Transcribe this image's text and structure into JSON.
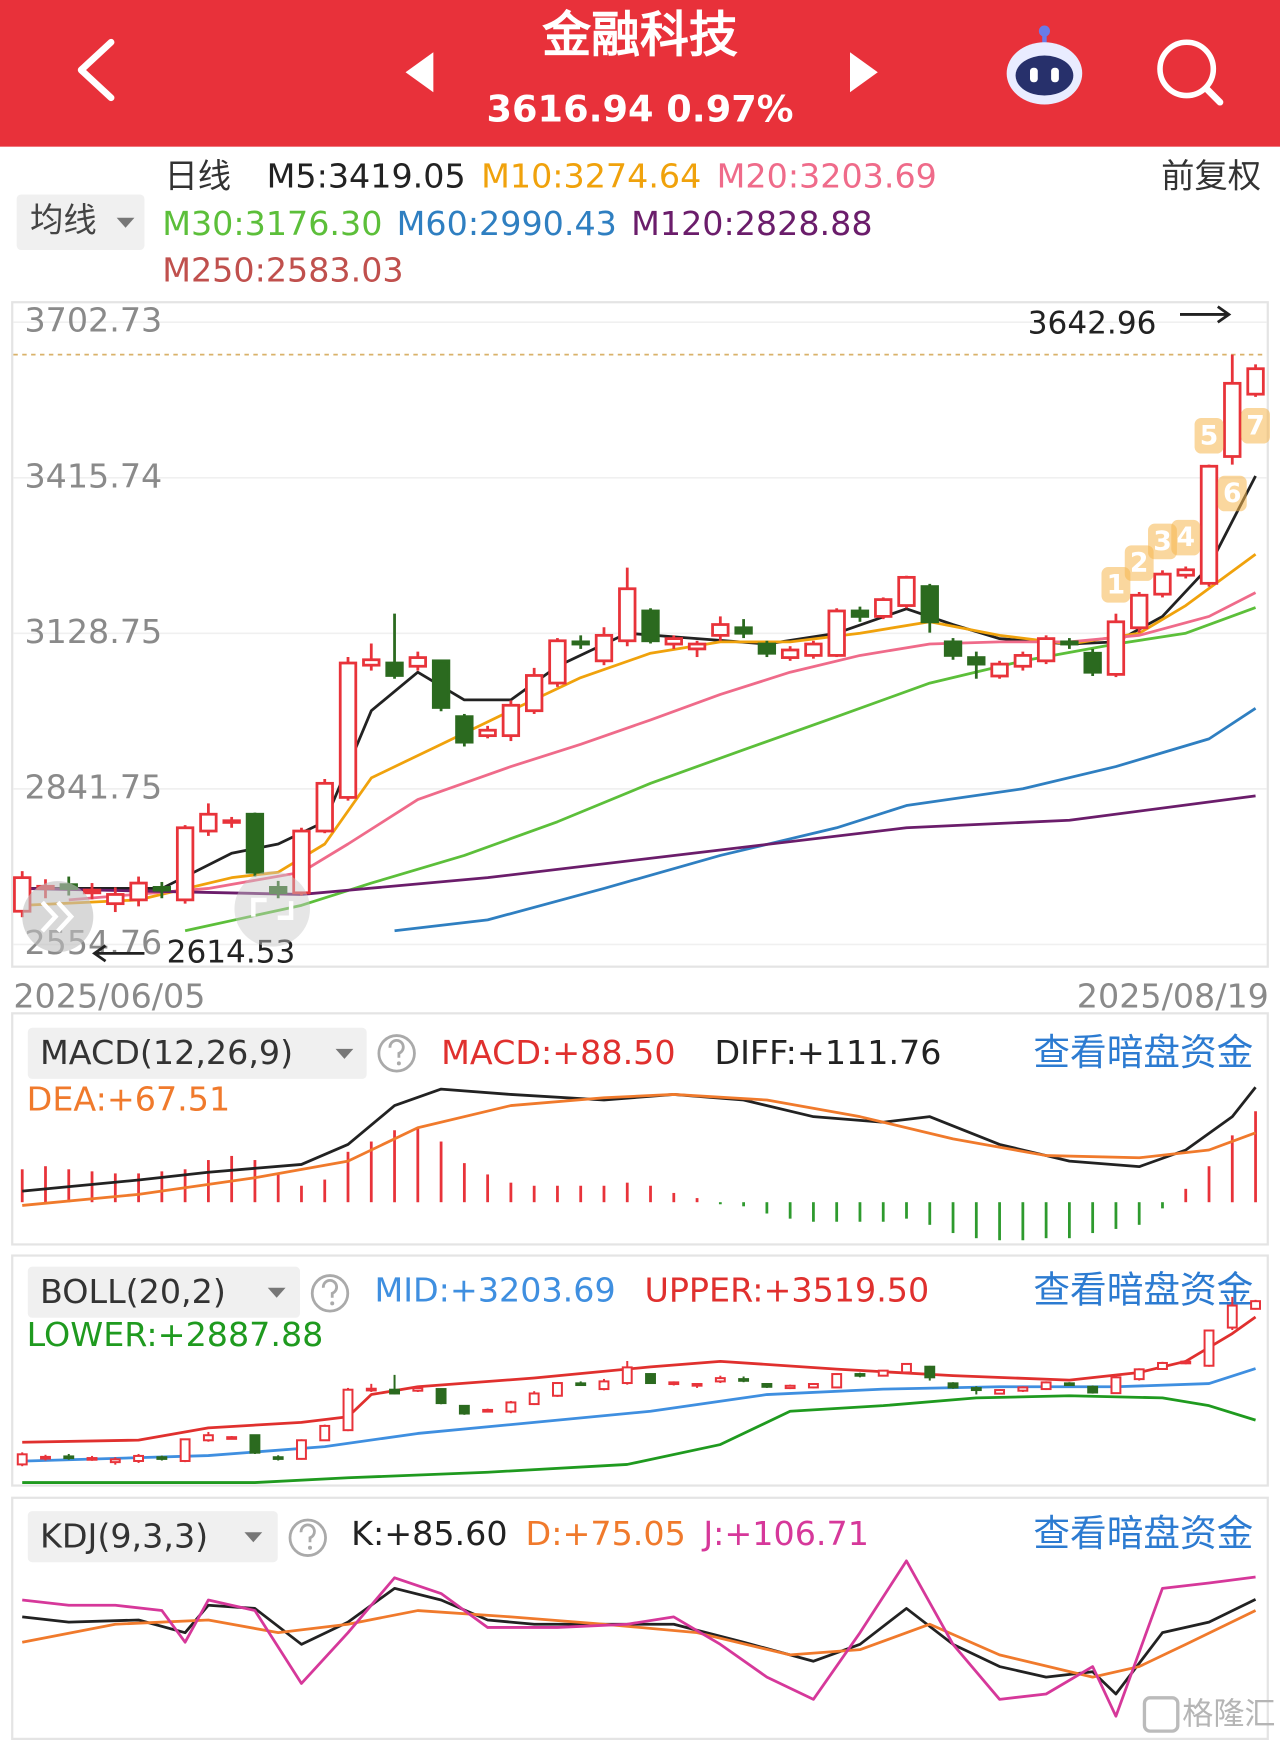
{
  "header": {
    "title": "金融科技",
    "quote": "3616.94 0.97%"
  },
  "watermark": "格隆汇",
  "chart_data": [
    {
      "type": "candlestick",
      "title": "日线",
      "adjust": "前复权",
      "ma_selector": "均线",
      "up_color": "#e8333a",
      "down_color": "#2b6a1f",
      "open": [
        2616,
        2658,
        2665,
        2650,
        2630,
        2637,
        2660,
        2637,
        2764,
        2781,
        2795,
        2660,
        2650,
        2764,
        2826,
        3070,
        3074,
        3068,
        3078,
        2975,
        2940,
        2940,
        2986,
        3037,
        3113,
        3078,
        3115,
        3170,
        3109,
        3100,
        3125,
        3139,
        3109,
        3084,
        3088,
        3088,
        3170,
        3160,
        3180,
        3215,
        3113,
        3084,
        3050,
        3068,
        3078,
        3113,
        3092,
        3053,
        3139,
        3201,
        3236,
        3221,
        3455,
        3570
      ],
      "close": [
        2678,
        2662,
        2658,
        2655,
        2647,
        2668,
        2655,
        2770,
        2795,
        2783,
        2688,
        2650,
        2764,
        2852,
        3074,
        3080,
        3051,
        3084,
        2992,
        2928,
        2950,
        2996,
        3051,
        3115,
        3109,
        3125,
        3211,
        3115,
        3119,
        3109,
        3145,
        3129,
        3092,
        3098,
        3109,
        3170,
        3160,
        3191,
        3232,
        3150,
        3088,
        3072,
        3072,
        3088,
        3119,
        3109,
        3057,
        3150,
        3199,
        3238,
        3246,
        3437,
        3590,
        3616.94
      ],
      "high": [
        2690,
        2675,
        2680,
        2668,
        2660,
        2680,
        2670,
        2775,
        2815,
        2790,
        2798,
        2672,
        2770,
        2860,
        3085,
        3110,
        3165,
        3095,
        3080,
        2980,
        2958,
        3005,
        3065,
        3120,
        3125,
        3140,
        3250,
        3175,
        3125,
        3115,
        3160,
        3155,
        3115,
        3105,
        3115,
        3175,
        3178,
        3195,
        3235,
        3220,
        3120,
        3095,
        3078,
        3095,
        3125,
        3120,
        3100,
        3165,
        3205,
        3245,
        3252,
        3440,
        3642.96,
        3625
      ],
      "low": [
        2605,
        2640,
        2645,
        2638,
        2614.53,
        2625,
        2640,
        2630,
        2755,
        2770,
        2680,
        2640,
        2645,
        2760,
        2820,
        3060,
        3045,
        3060,
        2985,
        2920,
        2935,
        2930,
        2980,
        3030,
        3100,
        3070,
        3105,
        3110,
        3100,
        3085,
        3115,
        3120,
        3085,
        3078,
        3082,
        3085,
        3150,
        3155,
        3175,
        3130,
        3080,
        3045,
        3045,
        3060,
        3072,
        3100,
        3050,
        3048,
        3130,
        3195,
        3230,
        3215,
        3440,
        3565
      ],
      "series": [
        {
          "name": "M5:3419.05",
          "color": "#222222",
          "x": [
            0,
            3,
            6,
            9,
            11,
            13,
            15,
            17,
            19,
            21,
            23,
            26,
            29,
            32,
            35,
            38,
            40,
            42,
            45,
            47,
            49,
            51,
            53
          ],
          "values": [
            2658,
            2658,
            2658,
            2723,
            2740,
            2781,
            2986,
            3057,
            3006,
            3006,
            3068,
            3129,
            3119,
            3109,
            3129,
            3174,
            3145,
            3119,
            3109,
            3113,
            3160,
            3252,
            3419.05
          ]
        },
        {
          "name": "M10:3274.64",
          "color": "#f0a20c",
          "x": [
            0,
            5,
            9,
            11,
            13,
            15,
            18,
            21,
            24,
            27,
            30,
            33,
            36,
            39,
            42,
            45,
            48,
            50,
            53
          ],
          "values": [
            2627,
            2637,
            2678,
            2688,
            2740,
            2862,
            2924,
            2986,
            3047,
            3092,
            3113,
            3113,
            3129,
            3150,
            3125,
            3109,
            3129,
            3180,
            3274.64
          ]
        },
        {
          "name": "M20:3203.69",
          "color": "#ef6b8a",
          "x": [
            2,
            8,
            12,
            14,
            17,
            21,
            24,
            27,
            30,
            33,
            36,
            39,
            42,
            45,
            48,
            51,
            53
          ],
          "values": [
            2637,
            2658,
            2688,
            2740,
            2822,
            2883,
            2924,
            2969,
            3016,
            3057,
            3088,
            3109,
            3113,
            3113,
            3125,
            3160,
            3203.69
          ]
        },
        {
          "name": "M30:3176.30",
          "color": "#5cbf3a",
          "x": [
            7,
            12,
            15,
            19,
            23,
            27,
            31,
            35,
            39,
            43,
            47,
            50,
            53
          ],
          "values": [
            2580,
            2627,
            2668,
            2719,
            2781,
            2852,
            2914,
            2975,
            3037,
            3078,
            3109,
            3129,
            3176.3
          ]
        },
        {
          "name": "M60:2990.43",
          "color": "#2f7fc1",
          "x": [
            16,
            20,
            25,
            30,
            35,
            38,
            43,
            47,
            51,
            53
          ],
          "values": [
            2580,
            2600,
            2658,
            2719,
            2770,
            2811,
            2842,
            2883,
            2934,
            2990.43
          ]
        },
        {
          "name": "M120:2828.88",
          "color": "#6b1d6b",
          "x": [
            0,
            12,
            20,
            30,
            38,
            45,
            53
          ],
          "values": [
            2658,
            2647,
            2678,
            2729,
            2770,
            2784,
            2828.88
          ]
        }
      ],
      "extra_legend": {
        "name": "M250:2583.03",
        "color": "#c0504d"
      },
      "ylim": [
        2554.76,
        3702.73
      ],
      "yticks": [
        3702.73,
        3415.74,
        3128.75,
        2841.75,
        2554.76
      ],
      "xlabels": [
        "2025/06/05",
        "2025/08/19"
      ],
      "signals": {
        "labels": [
          "1",
          "2",
          "3",
          "4",
          "5",
          "6",
          "7"
        ],
        "x": [
          47,
          48,
          49,
          50,
          51,
          52,
          53
        ],
        "color": "#f5b74e"
      }
    },
    {
      "type": "macd",
      "title": "MACD(12,26,9)",
      "link": "查看暗盘资金",
      "histogram": {
        "name": "MACD:+88.50",
        "up_color": "#e8333a",
        "down_color": "#2e9a2e",
        "values": [
          32,
          35,
          32,
          30,
          28,
          28,
          30,
          32,
          41,
          45,
          41,
          27,
          16,
          22,
          49,
          59,
          70,
          73,
          59,
          38,
          27,
          19,
          16,
          16,
          16,
          16,
          19,
          16,
          9,
          4,
          -2,
          -4,
          -11,
          -16,
          -19,
          -19,
          -19,
          -19,
          -16,
          -22,
          -30,
          -35,
          -37,
          -37,
          -35,
          -35,
          -30,
          -26,
          -22,
          -6,
          13,
          35,
          65,
          88.5
        ]
      },
      "series": [
        {
          "name": "DIFF:+111.76",
          "color": "#222222",
          "x": [
            0,
            5,
            8,
            12,
            14,
            16,
            18,
            21,
            25,
            28,
            31,
            34,
            37,
            39,
            42,
            45,
            48,
            50,
            52,
            53
          ],
          "values": [
            10.8,
            21.6,
            29.2,
            36.7,
            56.2,
            94,
            110,
            104.8,
            99.4,
            104.8,
            99.4,
            83.2,
            77.8,
            83.2,
            56.2,
            40,
            34.6,
            50.8,
            83.2,
            111.76
          ]
        },
        {
          "name": "DEA:+67.51",
          "color": "#f07a2c",
          "x": [
            0,
            5,
            10,
            14,
            17,
            21,
            25,
            28,
            32,
            36,
            40,
            44,
            48,
            51,
            53
          ],
          "values": [
            -3.2,
            7.6,
            23.8,
            40,
            72.4,
            94,
            101.5,
            104.8,
            99.4,
            83.2,
            61.6,
            45.4,
            43.2,
            50.8,
            67.51
          ]
        }
      ],
      "ylim": [
        -40,
        126.4
      ]
    },
    {
      "type": "boll",
      "title": "BOLL(20,2)",
      "link": "查看暗盘资金",
      "series": [
        {
          "name": "MID:+3203.69",
          "color": "#3f8fe0",
          "x": [
            0,
            8,
            13,
            17,
            22,
            27,
            32,
            37,
            42,
            47,
            51,
            53
          ],
          "values": [
            2636,
            2670,
            2725,
            2806,
            2874,
            2942,
            3044,
            3078,
            3092,
            3092,
            3112,
            3203.69
          ]
        },
        {
          "name": "UPPER:+3519.50",
          "color": "#e0302e",
          "x": [
            0,
            5,
            8,
            12,
            14,
            15,
            17,
            22,
            27,
            30,
            35,
            40,
            45,
            48,
            50,
            52,
            53
          ],
          "values": [
            2752,
            2765,
            2840,
            2874,
            2908,
            3044,
            3092,
            3146,
            3214,
            3248,
            3200,
            3160,
            3133,
            3180,
            3248,
            3418,
            3519.5
          ]
        },
        {
          "name": "LOWER:+2887.88",
          "color": "#1f9a1f",
          "x": [
            0,
            10,
            14,
            20,
            26,
            30,
            33,
            37,
            41,
            45,
            49,
            51,
            53
          ],
          "values": [
            2505,
            2505,
            2534,
            2568,
            2616,
            2738,
            2942,
            2976,
            3024,
            3037,
            3024,
            2976,
            2887.88
          ]
        }
      ],
      "ylim": [
        2500,
        3590
      ]
    },
    {
      "type": "kdj",
      "title": "KDJ(9,3,3)",
      "link": "查看暗盘资金",
      "series": [
        {
          "name": "K:+85.60",
          "color": "#222222",
          "x": [
            0,
            2,
            5,
            7,
            8,
            10,
            12,
            14,
            16,
            18,
            20,
            22,
            25,
            28,
            31,
            34,
            36,
            38,
            40,
            42,
            44,
            46,
            47,
            49,
            51,
            53
          ],
          "values": [
            69,
            64,
            66,
            54,
            80,
            77,
            43,
            64,
            96,
            85,
            66,
            62,
            62,
            62,
            45,
            27,
            43,
            77,
            43,
            22,
            12,
            17,
            -4,
            54,
            64,
            85.6
          ]
        },
        {
          "name": "D:+75.05",
          "color": "#f07a2c",
          "x": [
            0,
            4,
            8,
            11,
            14,
            17,
            21,
            25,
            29,
            33,
            36,
            39,
            42,
            46,
            48,
            50,
            53
          ],
          "values": [
            45,
            62,
            66,
            54,
            62,
            75,
            69,
            62,
            54,
            33,
            38,
            62,
            33,
            12,
            22,
            43,
            75.05
          ]
        },
        {
          "name": "J:+106.71",
          "color": "#d6389a",
          "x": [
            0,
            2,
            4,
            6,
            7,
            8,
            10,
            12,
            14,
            16,
            18,
            20,
            23,
            26,
            28,
            30,
            32,
            34,
            36,
            38,
            40,
            42,
            44,
            46,
            47,
            49,
            51,
            53
          ],
          "values": [
            85,
            80,
            80,
            75,
            45,
            85,
            75,
            6,
            54,
            106,
            91,
            59,
            59,
            62,
            69,
            43,
            12,
            -9,
            54,
            122,
            43,
            -9,
            -4,
            22,
            -25,
            96,
            101,
            106.71
          ]
        }
      ],
      "ylim": [
        -37,
        127
      ]
    }
  ]
}
